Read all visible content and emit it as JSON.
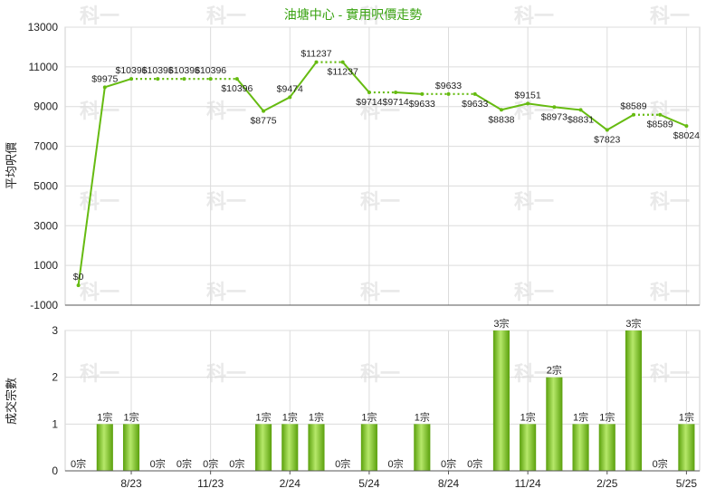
{
  "chart_data": [
    {
      "type": "line",
      "title": "油塘中心 - 實用呎價走勢",
      "ylabel": "平均呎價",
      "ylim": [
        -1000,
        13000
      ],
      "yticks": [
        -1000,
        1000,
        3000,
        5000,
        7000,
        9000,
        11000,
        13000
      ],
      "grid": true,
      "xticks": [
        "8/23",
        "11/23",
        "2/24",
        "5/24",
        "8/24",
        "11/24",
        "2/25",
        "5/25"
      ],
      "series": [
        {
          "values": [
            0,
            9975,
            10396,
            10396,
            10396,
            10396,
            10396,
            8775,
            9474,
            11237,
            11237,
            9714,
            9714,
            9633,
            9633,
            9633,
            8838,
            9151,
            8973,
            8831,
            7823,
            8589,
            8589,
            8024
          ],
          "labels": [
            "$0",
            "$9975",
            "$10396",
            "$10396",
            "$10396",
            "$10396",
            "$10396",
            "$8775",
            "$9474",
            "$11237",
            "$11237",
            "$9714",
            "$9714",
            "$9633",
            "$9633",
            "$9633",
            "$8838",
            "$9151",
            "$8973",
            "$8831",
            "$7823",
            "$8589",
            "$8589",
            "$8024"
          ],
          "color": "#66bb11"
        }
      ]
    },
    {
      "type": "bar",
      "ylabel": "成交宗數",
      "ylim": [
        0,
        3
      ],
      "yticks": [
        0,
        1,
        2,
        3
      ],
      "grid": true,
      "xticks": [
        "8/23",
        "11/23",
        "2/24",
        "5/24",
        "8/24",
        "11/24",
        "2/25",
        "5/25"
      ],
      "series": [
        {
          "values": [
            0,
            1,
            1,
            0,
            0,
            0,
            0,
            1,
            1,
            1,
            0,
            1,
            0,
            1,
            0,
            0,
            3,
            1,
            2,
            1,
            1,
            3,
            0,
            1
          ],
          "labels": [
            "0宗",
            "1宗",
            "1宗",
            "0宗",
            "0宗",
            "0宗",
            "0宗",
            "1宗",
            "1宗",
            "1宗",
            "0宗",
            "1宗",
            "0宗",
            "1宗",
            "0宗",
            "0宗",
            "3宗",
            "1宗",
            "2宗",
            "1宗",
            "1宗",
            "3宗",
            "0宗",
            "1宗"
          ],
          "color": "#77c21a"
        }
      ]
    }
  ],
  "watermark": "科一",
  "colors": {
    "title": "#3aa312",
    "line": "#66bb11",
    "bar_light": "#b6e86a",
    "bar_dark": "#5aa00c"
  }
}
